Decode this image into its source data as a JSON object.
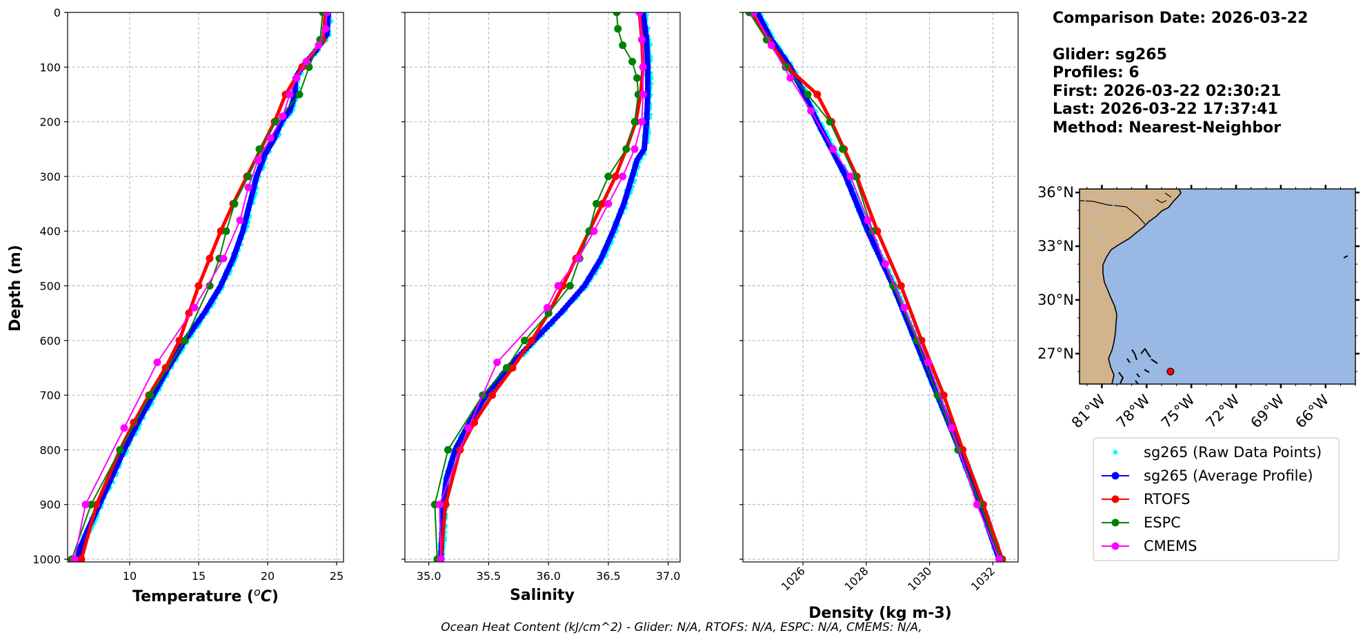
{
  "info": {
    "comparison_date": "Comparison Date: 2026-03-22",
    "glider": "Glider: sg265",
    "profiles": "Profiles: 6",
    "first": "First: 2026-03-22 02:30:21",
    "last": "Last: 2026-03-22 17:37:41",
    "method": "Method: Nearest-Neighbor"
  },
  "footer": "Ocean Heat Content (kJ/cm^2) - Glider: N/A,  RTOFS: N/A,  ESPC: N/A,  CMEMS: N/A,",
  "colors": {
    "raw": "#00ffff",
    "avg": "#0000ff",
    "rtofs": "#ff0000",
    "espc": "#008000",
    "cmems": "#ff00ff",
    "land": "#d2b48c",
    "ocean": "#9ab8e4"
  },
  "legend": [
    {
      "key": "raw",
      "label": "sg265 (Raw Data Points)",
      "style": "dot"
    },
    {
      "key": "avg",
      "label": "sg265 (Average Profile)",
      "style": "line"
    },
    {
      "key": "rtofs",
      "label": "RTOFS",
      "style": "line"
    },
    {
      "key": "espc",
      "label": "ESPC",
      "style": "line"
    },
    {
      "key": "cmems",
      "label": "CMEMS",
      "style": "line"
    }
  ],
  "map": {
    "lat_labels": [
      "36°N",
      "33°N",
      "30°N",
      "27°N"
    ],
    "lon_labels": [
      "81°W",
      "78°W",
      "75°W",
      "72°W",
      "69°W",
      "66°W"
    ],
    "extent": {
      "lon": [
        -82.5,
        -64.0
      ],
      "lat": [
        25.3,
        36.2
      ]
    },
    "glider_location": {
      "lon": -76.4,
      "lat": 26.0
    }
  },
  "chart_data": [
    {
      "type": "line",
      "title": "",
      "xlabel": "Temperature (°C)",
      "ylabel": "Depth (m)",
      "xlim": [
        5.5,
        25.5
      ],
      "ylim": [
        1005,
        0
      ],
      "xticks": [
        10,
        15,
        20,
        25
      ],
      "yticks": [
        0,
        100,
        200,
        300,
        400,
        500,
        600,
        700,
        800,
        900,
        1000
      ],
      "grid": true,
      "series": [
        {
          "name": "sg265 (Average Profile)",
          "key": "avg",
          "depth": [
            0,
            40,
            70,
            100,
            120,
            150,
            180,
            200,
            230,
            260,
            300,
            350,
            400,
            450,
            500,
            550,
            600,
            650,
            700,
            750,
            800,
            850,
            900,
            950,
            980,
            1000
          ],
          "values": [
            24.4,
            24.3,
            23.5,
            22.5,
            22.0,
            22.0,
            21.6,
            21.0,
            20.5,
            19.8,
            19.2,
            18.7,
            18.2,
            17.5,
            16.6,
            15.4,
            14.0,
            12.8,
            11.7,
            10.6,
            9.6,
            8.7,
            7.8,
            6.9,
            6.4,
            6.2
          ]
        },
        {
          "name": "RTOFS",
          "key": "rtofs",
          "depth": [
            0,
            50,
            100,
            150,
            200,
            250,
            300,
            350,
            400,
            450,
            500,
            550,
            600,
            650,
            700,
            750,
            800,
            900,
            1000
          ],
          "values": [
            24.2,
            24.0,
            22.5,
            21.3,
            20.5,
            19.5,
            18.5,
            17.5,
            16.6,
            15.8,
            15.0,
            14.3,
            13.6,
            12.6,
            11.4,
            10.3,
            9.3,
            7.6,
            6.5
          ]
        },
        {
          "name": "ESPC",
          "key": "espc",
          "depth": [
            0,
            50,
            100,
            150,
            200,
            250,
            300,
            350,
            400,
            450,
            500,
            600,
            700,
            800,
            900,
            1000
          ],
          "values": [
            24.0,
            23.8,
            23.0,
            22.3,
            20.6,
            19.4,
            18.6,
            17.6,
            17.0,
            16.5,
            15.8,
            14.0,
            11.5,
            9.3,
            7.2,
            5.8
          ]
        },
        {
          "name": "CMEMS",
          "key": "cmems",
          "depth": [
            0,
            30,
            60,
            90,
            120,
            150,
            190,
            230,
            270,
            320,
            380,
            450,
            540,
            640,
            760,
            900,
            1000
          ],
          "values": [
            24.3,
            24.2,
            23.7,
            22.8,
            22.1,
            21.6,
            21.1,
            20.2,
            19.3,
            18.6,
            18.0,
            16.8,
            14.7,
            12.0,
            9.6,
            6.8,
            6.0
          ]
        }
      ]
    },
    {
      "type": "line",
      "title": "",
      "xlabel": "Salinity",
      "ylabel": "",
      "xlim": [
        34.8,
        37.1
      ],
      "ylim": [
        1005,
        0
      ],
      "xticks": [
        35.0,
        35.5,
        36.0,
        36.5,
        37.0
      ],
      "yticks": [
        0,
        100,
        200,
        300,
        400,
        500,
        600,
        700,
        800,
        900,
        1000
      ],
      "grid": true,
      "series": [
        {
          "name": "sg265 (Average Profile)",
          "key": "avg",
          "depth": [
            0,
            50,
            100,
            150,
            200,
            250,
            270,
            300,
            350,
            400,
            450,
            500,
            550,
            600,
            650,
            700,
            750,
            800,
            850,
            900,
            950,
            1000
          ],
          "values": [
            36.79,
            36.82,
            36.83,
            36.83,
            36.82,
            36.8,
            36.74,
            36.7,
            36.63,
            36.54,
            36.44,
            36.3,
            36.1,
            35.88,
            35.66,
            35.48,
            35.34,
            35.22,
            35.15,
            35.12,
            35.11,
            35.1
          ]
        },
        {
          "name": "RTOFS",
          "key": "rtofs",
          "depth": [
            0,
            50,
            100,
            150,
            200,
            250,
            300,
            350,
            400,
            450,
            500,
            550,
            600,
            650,
            700,
            750,
            800,
            900,
            1000
          ],
          "values": [
            36.76,
            36.78,
            36.79,
            36.77,
            36.73,
            36.65,
            36.56,
            36.45,
            36.34,
            36.23,
            36.12,
            36.0,
            35.86,
            35.7,
            35.53,
            35.38,
            35.26,
            35.14,
            35.1
          ]
        },
        {
          "name": "ESPC",
          "key": "espc",
          "depth": [
            0,
            30,
            60,
            90,
            120,
            150,
            200,
            250,
            300,
            350,
            400,
            450,
            500,
            550,
            600,
            650,
            700,
            800,
            900,
            1000
          ],
          "values": [
            36.57,
            36.58,
            36.62,
            36.7,
            36.74,
            36.75,
            36.72,
            36.65,
            36.5,
            36.4,
            36.34,
            36.26,
            36.18,
            36.0,
            35.8,
            35.65,
            35.45,
            35.16,
            35.05,
            35.07
          ]
        },
        {
          "name": "CMEMS",
          "key": "cmems",
          "depth": [
            0,
            50,
            100,
            150,
            200,
            250,
            300,
            350,
            400,
            450,
            500,
            540,
            640,
            760,
            900,
            1000
          ],
          "values": [
            36.76,
            36.78,
            36.79,
            36.79,
            36.78,
            36.72,
            36.62,
            36.5,
            36.38,
            36.25,
            36.08,
            35.99,
            35.57,
            35.33,
            35.09,
            35.1
          ]
        }
      ]
    },
    {
      "type": "line",
      "title": "",
      "xlabel": "Density (kg m-3)",
      "ylabel": "",
      "xlim": [
        1024.1,
        1032.8
      ],
      "ylim": [
        1005,
        0
      ],
      "xticks": [
        1026,
        1028,
        1030,
        1032
      ],
      "yticks": [
        0,
        100,
        200,
        300,
        400,
        500,
        600,
        700,
        800,
        900,
        1000
      ],
      "grid": true,
      "series": [
        {
          "name": "sg265 (Average Profile)",
          "key": "avg",
          "depth": [
            0,
            50,
            100,
            150,
            200,
            250,
            300,
            400,
            500,
            600,
            700,
            800,
            900,
            1000
          ],
          "values": [
            1024.55,
            1025.0,
            1025.6,
            1026.05,
            1026.45,
            1026.9,
            1027.35,
            1028.05,
            1028.85,
            1029.55,
            1030.25,
            1030.95,
            1031.6,
            1032.2
          ]
        },
        {
          "name": "RTOFS",
          "key": "rtofs",
          "depth": [
            0,
            50,
            100,
            150,
            200,
            250,
            300,
            400,
            500,
            600,
            700,
            800,
            900,
            1000
          ],
          "values": [
            1024.4,
            1024.9,
            1025.5,
            1026.45,
            1026.9,
            1027.3,
            1027.7,
            1028.35,
            1029.1,
            1029.75,
            1030.45,
            1031.05,
            1031.7,
            1032.3
          ]
        },
        {
          "name": "ESPC",
          "key": "espc",
          "depth": [
            0,
            50,
            100,
            150,
            200,
            250,
            300,
            400,
            500,
            600,
            700,
            800,
            900,
            1000
          ],
          "values": [
            1024.3,
            1024.85,
            1025.45,
            1026.15,
            1026.85,
            1027.25,
            1027.65,
            1028.2,
            1028.85,
            1029.6,
            1030.25,
            1030.9,
            1031.6,
            1032.25
          ]
        },
        {
          "name": "CMEMS",
          "key": "cmems",
          "depth": [
            0,
            60,
            120,
            180,
            250,
            300,
            380,
            460,
            540,
            640,
            760,
            900,
            1000
          ],
          "values": [
            1024.45,
            1025.0,
            1025.6,
            1026.25,
            1026.95,
            1027.5,
            1028.05,
            1028.6,
            1029.2,
            1029.95,
            1030.7,
            1031.5,
            1032.2
          ]
        }
      ]
    }
  ]
}
